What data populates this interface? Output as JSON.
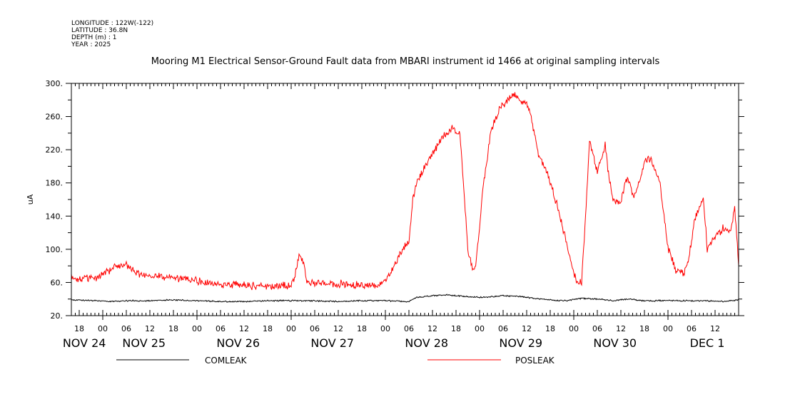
{
  "header": {
    "longitude": "LONGITUDE : 122W(-122)",
    "latitude": "LATITUDE : 36.8N",
    "depth": "DEPTH (m) : 1",
    "year": "YEAR : 2025"
  },
  "chart_data": {
    "type": "line",
    "title": "Mooring M1 Electrical Sensor-Ground Fault data from MBARI instrument id 1466 at original sampling intervals",
    "xlabel": "",
    "ylabel": "uA",
    "ylim": [
      20,
      300
    ],
    "yticks": [
      "20.",
      "60.",
      "100.",
      "140.",
      "180.",
      "220.",
      "260.",
      "300."
    ],
    "x_unit": "hours since NOV 24 16:00",
    "xlim": [
      0,
      170
    ],
    "hour_ticks": [
      {
        "x": 2,
        "label": "18"
      },
      {
        "x": 8,
        "label": "00"
      },
      {
        "x": 14,
        "label": "06"
      },
      {
        "x": 20,
        "label": "12"
      },
      {
        "x": 26,
        "label": "18"
      },
      {
        "x": 32,
        "label": "00"
      },
      {
        "x": 38,
        "label": "06"
      },
      {
        "x": 44,
        "label": "12"
      },
      {
        "x": 50,
        "label": "18"
      },
      {
        "x": 56,
        "label": "00"
      },
      {
        "x": 62,
        "label": "06"
      },
      {
        "x": 68,
        "label": "12"
      },
      {
        "x": 74,
        "label": "18"
      },
      {
        "x": 80,
        "label": "00"
      },
      {
        "x": 86,
        "label": "06"
      },
      {
        "x": 92,
        "label": "12"
      },
      {
        "x": 98,
        "label": "18"
      },
      {
        "x": 104,
        "label": "00"
      },
      {
        "x": 110,
        "label": "06"
      },
      {
        "x": 116,
        "label": "12"
      },
      {
        "x": 122,
        "label": "18"
      },
      {
        "x": 128,
        "label": "00"
      },
      {
        "x": 134,
        "label": "06"
      },
      {
        "x": 140,
        "label": "12"
      },
      {
        "x": 146,
        "label": "18"
      },
      {
        "x": 152,
        "label": "00"
      },
      {
        "x": 158,
        "label": "06"
      },
      {
        "x": 164,
        "label": "12"
      }
    ],
    "day_labels": [
      {
        "x": 3.3,
        "label": "NOV 24"
      },
      {
        "x": 18.5,
        "label": "NOV 25"
      },
      {
        "x": 42.5,
        "label": "NOV 26"
      },
      {
        "x": 66.5,
        "label": "NOV 27"
      },
      {
        "x": 90.5,
        "label": "NOV 28"
      },
      {
        "x": 114.5,
        "label": "NOV 29"
      },
      {
        "x": 138.5,
        "label": "NOV 30"
      },
      {
        "x": 162,
        "label": "DEC  1"
      }
    ],
    "grid": false,
    "legend_position": "bottom",
    "series": [
      {
        "name": "COMLEAK",
        "color": "#000000",
        "x": [
          0,
          6,
          10,
          14,
          20,
          26,
          32,
          38,
          44,
          50,
          56,
          62,
          68,
          74,
          80,
          86,
          88,
          92,
          96,
          100,
          104,
          108,
          110,
          114,
          118,
          122,
          126,
          130,
          134,
          138,
          142,
          146,
          150,
          154,
          158,
          162,
          166,
          170
        ],
        "y": [
          39,
          38,
          37,
          38,
          38,
          39,
          38,
          37,
          37,
          38,
          38,
          38,
          37,
          38,
          38,
          37,
          42,
          44,
          45,
          43,
          42,
          43,
          44,
          43,
          41,
          39,
          38,
          41,
          40,
          38,
          40,
          38,
          38,
          38,
          38,
          38,
          37,
          39
        ]
      },
      {
        "name": "POSLEAK",
        "color": "#ff0000",
        "x": [
          0,
          3,
          6,
          9,
          11,
          14,
          16,
          18,
          22,
          26,
          30,
          34,
          38,
          42,
          46,
          50,
          54,
          56,
          57,
          58,
          59,
          60,
          62,
          66,
          70,
          74,
          78,
          80,
          82,
          84,
          86,
          87,
          88,
          90,
          92,
          94,
          97,
          99,
          100,
          101,
          102,
          103,
          105,
          107,
          109,
          111,
          113,
          116,
          117,
          118,
          119,
          120,
          121,
          122,
          124,
          126,
          128,
          129,
          130,
          131,
          132,
          134,
          135,
          136,
          137,
          138,
          140,
          141,
          142,
          143,
          144,
          146,
          147,
          148,
          150,
          152,
          153,
          154,
          156,
          157,
          158,
          159,
          160,
          161,
          162,
          164,
          166,
          168,
          169,
          170
        ],
        "y": [
          66,
          64,
          65,
          72,
          80,
          82,
          72,
          70,
          68,
          66,
          64,
          60,
          58,
          57,
          56,
          56,
          56,
          56,
          70,
          92,
          86,
          62,
          60,
          59,
          58,
          57,
          56,
          62,
          78,
          96,
          110,
          160,
          180,
          200,
          215,
          232,
          245,
          240,
          175,
          100,
          78,
          78,
          180,
          245,
          268,
          280,
          285,
          275,
          262,
          240,
          215,
          205,
          195,
          180,
          150,
          110,
          70,
          58,
          60,
          140,
          230,
          195,
          210,
          225,
          185,
          160,
          155,
          180,
          185,
          165,
          170,
          205,
          212,
          205,
          180,
          100,
          90,
          75,
          70,
          80,
          110,
          140,
          150,
          165,
          100,
          115,
          125,
          120,
          150,
          80
        ]
      }
    ]
  }
}
